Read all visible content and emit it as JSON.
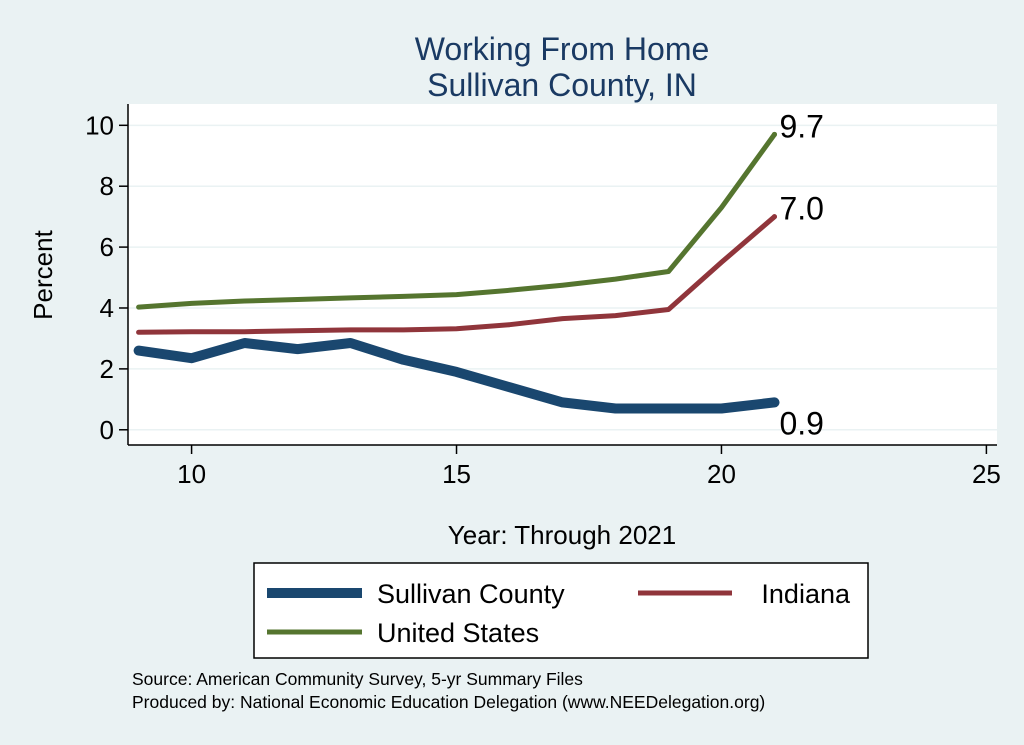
{
  "chart_data": {
    "type": "line",
    "title": [
      "Working From Home",
      "Sullivan County, IN"
    ],
    "xlabel": "Year: Through 2021",
    "ylabel": "Percent",
    "xlim": [
      8.8,
      25.2
    ],
    "ylim": [
      -0.5,
      10.7
    ],
    "x_ticks": [
      10,
      15,
      20,
      25
    ],
    "y_ticks": [
      0,
      2,
      4,
      6,
      8,
      10
    ],
    "grid": "horizontal",
    "legend_position": "bottom",
    "series": [
      {
        "name": "Sullivan County",
        "color": "#1a476f",
        "width": 10,
        "x": [
          9,
          10,
          11,
          12,
          13,
          14,
          15,
          16,
          17,
          18,
          19,
          20,
          21
        ],
        "y": [
          2.6,
          2.35,
          2.85,
          2.65,
          2.85,
          2.3,
          1.9,
          1.4,
          0.9,
          0.7,
          0.7,
          0.7,
          0.9
        ],
        "end_label": "0.9"
      },
      {
        "name": "Indiana",
        "color": "#90353b",
        "width": 5,
        "x": [
          9,
          10,
          11,
          12,
          13,
          14,
          15,
          16,
          17,
          18,
          19,
          20,
          21
        ],
        "y": [
          3.2,
          3.22,
          3.22,
          3.25,
          3.28,
          3.28,
          3.32,
          3.45,
          3.65,
          3.75,
          3.95,
          5.5,
          7.0
        ],
        "end_label": "7.0"
      },
      {
        "name": "United States",
        "color": "#55752f",
        "width": 5,
        "x": [
          9,
          10,
          11,
          12,
          13,
          14,
          15,
          16,
          17,
          18,
          19,
          20,
          21
        ],
        "y": [
          4.03,
          4.15,
          4.23,
          4.28,
          4.33,
          4.38,
          4.44,
          4.58,
          4.75,
          4.95,
          5.2,
          7.3,
          9.7
        ],
        "end_label": "9.7"
      }
    ],
    "notes": [
      "Source: American Community Survey, 5-yr Summary Files",
      "Produced by: National Economic Education Delegation (www.NEEDelegation.org)"
    ]
  }
}
